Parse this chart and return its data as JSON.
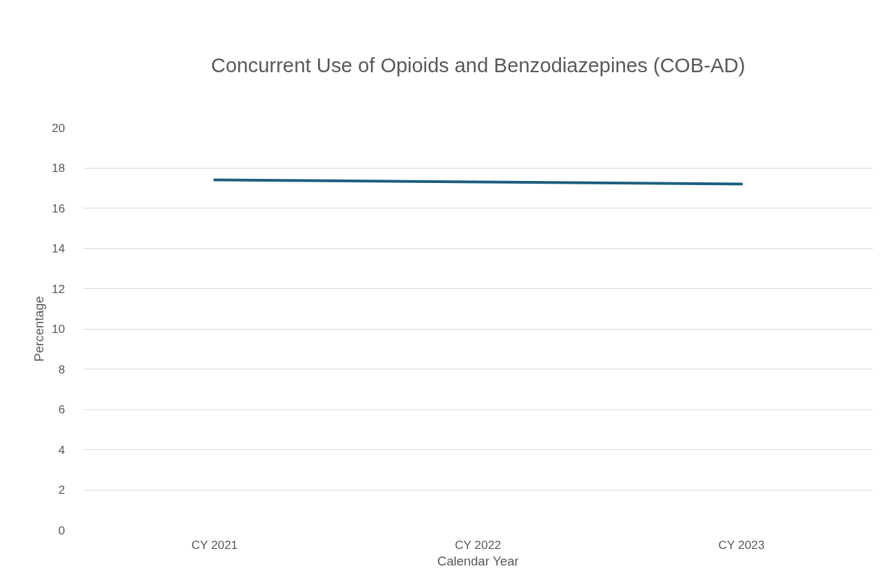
{
  "chart_data": {
    "type": "line",
    "title": "Concurrent Use of Opioids and Benzodiazepines (COB-AD)",
    "xlabel": "Calendar Year",
    "ylabel": "Percentage",
    "categories": [
      "CY 2021",
      "CY 2022",
      "CY 2023"
    ],
    "series": [
      {
        "color": "#1b5e7e",
        "values": [
          17.4,
          17.3,
          17.2
        ]
      }
    ],
    "ylim": [
      0,
      20
    ],
    "yticks": [
      0,
      2,
      4,
      6,
      8,
      10,
      12,
      14,
      16,
      18,
      20
    ],
    "grid": "y",
    "marker": "none",
    "line_style": "solid"
  }
}
